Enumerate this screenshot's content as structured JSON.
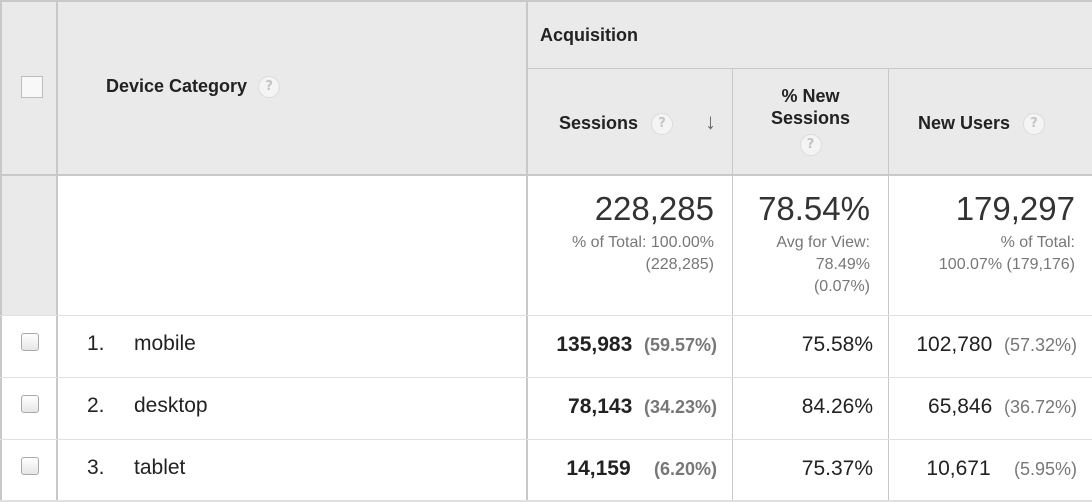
{
  "header": {
    "device_category_label": "Device Category",
    "acquisition_label": "Acquisition",
    "help_glyph": "?",
    "sort_glyph": "↓",
    "columns": {
      "sessions": "Sessions",
      "pct_new_sessions_line1": "% New",
      "pct_new_sessions_line2": "Sessions",
      "new_users": "New Users"
    }
  },
  "totals": {
    "sessions": {
      "value": "228,285",
      "line1": "% of Total: 100.00%",
      "line2": "(228,285)"
    },
    "pct_new_sessions": {
      "value": "78.54%",
      "line1": "Avg for View:",
      "line2": "78.49%",
      "line3": "(0.07%)"
    },
    "new_users": {
      "value": "179,297",
      "line1": "% of Total:",
      "line2": "100.07% (179,176)"
    }
  },
  "rows": [
    {
      "num": "1.",
      "name": "mobile",
      "sessions": "135,983",
      "sessions_pct": "(59.57%)",
      "pct_new": "75.58%",
      "new_users": "102,780",
      "new_users_pct": "(57.32%)"
    },
    {
      "num": "2.",
      "name": "desktop",
      "sessions": "78,143",
      "sessions_pct": "(34.23%)",
      "pct_new": "84.26%",
      "new_users": "65,846",
      "new_users_pct": "(36.72%)"
    },
    {
      "num": "3.",
      "name": "tablet",
      "sessions": "14,159",
      "sessions_pct": "(6.20%)",
      "pct_new": "75.37%",
      "new_users": "10,671",
      "new_users_pct": "(5.95%)"
    }
  ]
}
